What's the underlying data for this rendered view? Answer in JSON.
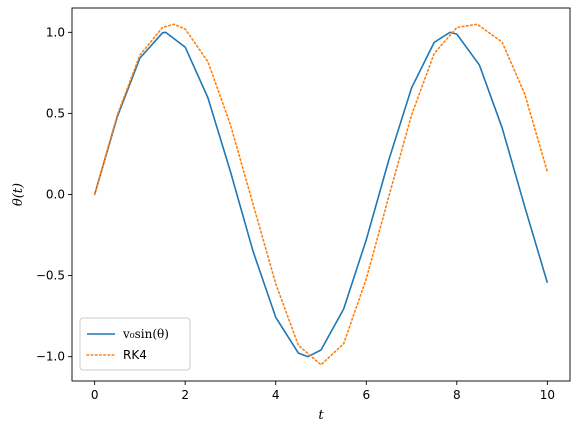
{
  "chart_data": {
    "type": "line",
    "title": "",
    "xlabel": "t",
    "ylabel": "θ(t)",
    "xlim": [
      -0.5,
      10.5
    ],
    "ylim": [
      -1.15,
      1.15
    ],
    "x_ticks": [
      0,
      2,
      4,
      6,
      8,
      10
    ],
    "x_tick_labels": [
      "0",
      "2",
      "4",
      "6",
      "8",
      "10"
    ],
    "y_ticks": [
      -1.0,
      -0.5,
      0.0,
      0.5,
      1.0
    ],
    "y_tick_labels": [
      "−1.0",
      "−0.5",
      "0.0",
      "0.5",
      "1.0"
    ],
    "grid": false,
    "legend_position": "lower-left",
    "series": [
      {
        "name": "v₀sin(θ)",
        "color": "#1f77b4",
        "style": "solid",
        "x": [
          0,
          0.5,
          1,
          1.5,
          1.57,
          2,
          2.5,
          3,
          3.5,
          4,
          4.5,
          4.71,
          5,
          5.5,
          6,
          6.5,
          7,
          7.5,
          7.85,
          8,
          8.5,
          9,
          9.5,
          10
        ],
        "y": [
          0,
          0.479,
          0.841,
          0.997,
          1.0,
          0.909,
          0.598,
          0.141,
          -0.351,
          -0.757,
          -0.978,
          -1.0,
          -0.959,
          -0.706,
          -0.279,
          0.215,
          0.657,
          0.938,
          1.0,
          0.989,
          0.798,
          0.412,
          -0.075,
          -0.544
        ]
      },
      {
        "name": "RK4",
        "color": "#ff7f0e",
        "style": "dotted",
        "x": [
          0,
          0.5,
          1,
          1.5,
          1.75,
          2,
          2.5,
          3,
          3.5,
          4,
          4.5,
          5.0,
          5.5,
          6,
          6.5,
          7,
          7.5,
          8,
          8.45,
          9,
          9.5,
          10
        ],
        "y": [
          0,
          0.49,
          0.86,
          1.03,
          1.05,
          1.02,
          0.82,
          0.43,
          -0.06,
          -0.55,
          -0.93,
          -1.05,
          -0.92,
          -0.52,
          -0.01,
          0.49,
          0.87,
          1.03,
          1.05,
          0.94,
          0.62,
          0.14
        ]
      }
    ]
  }
}
